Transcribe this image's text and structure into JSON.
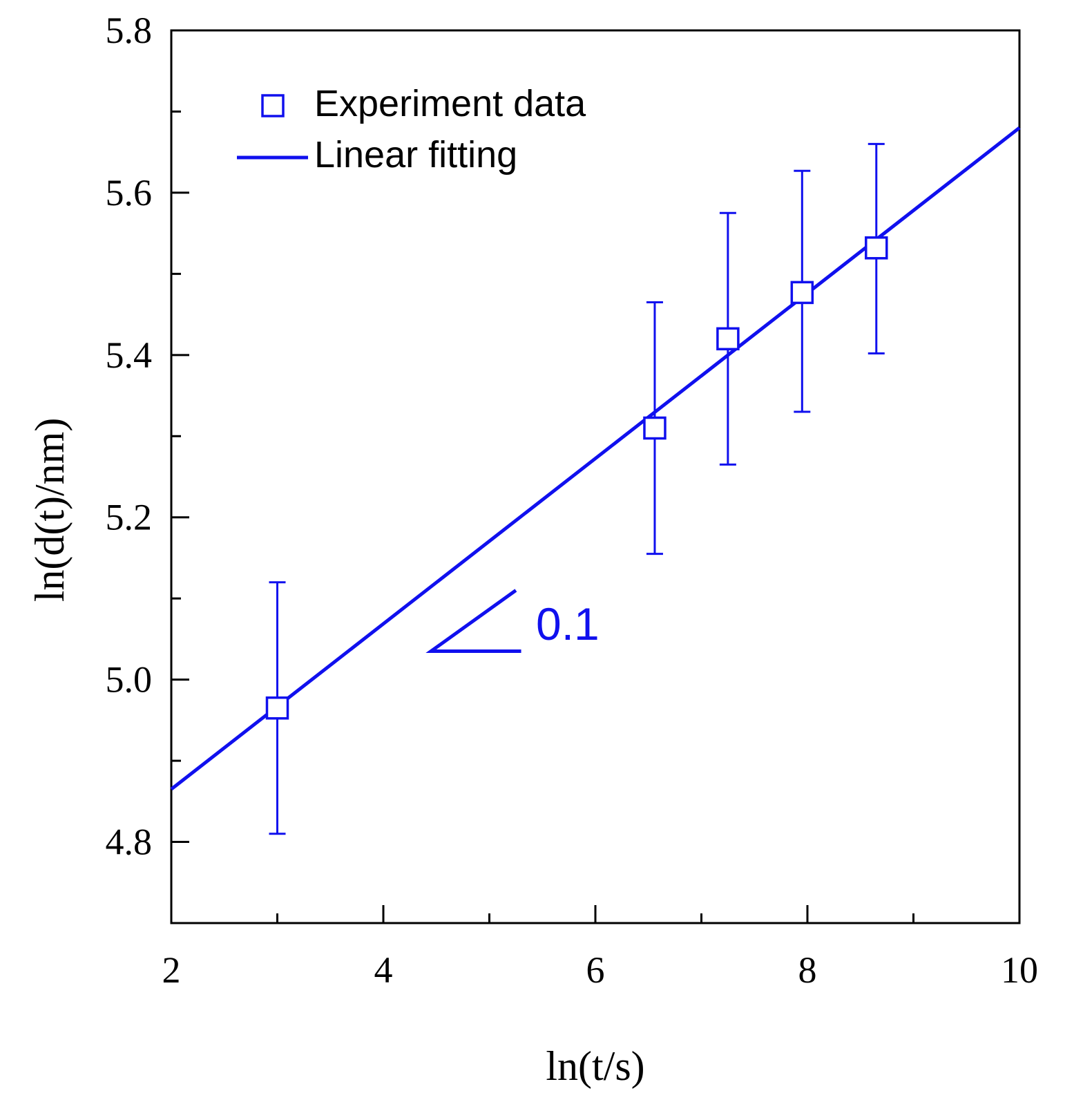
{
  "chart_data": {
    "type": "scatter",
    "xlabel": "ln(t/s)",
    "ylabel": "ln(d(t)/nm)",
    "xlim": [
      2,
      10
    ],
    "ylim": [
      4.7,
      5.8
    ],
    "x_ticks_major": [
      2,
      4,
      6,
      8,
      10
    ],
    "x_tick_labels": [
      "2",
      "4",
      "6",
      "8",
      "10"
    ],
    "x_ticks_minor": [
      3,
      5,
      7,
      9
    ],
    "y_ticks_major": [
      4.8,
      5.0,
      5.2,
      5.4,
      5.6,
      5.8
    ],
    "y_tick_labels": [
      "4.8",
      "5.0",
      "5.2",
      "5.4",
      "5.6",
      "5.8"
    ],
    "y_ticks_minor": [
      4.9,
      5.1,
      5.3,
      5.5,
      5.7
    ],
    "grid": false,
    "color": "#1010ee",
    "series": [
      {
        "name": "Experiment data",
        "marker": "open-square",
        "x": [
          3.0,
          6.56,
          7.25,
          7.95,
          8.65
        ],
        "y": [
          4.965,
          5.31,
          5.42,
          5.477,
          5.532
        ],
        "err_low": [
          4.81,
          5.155,
          5.265,
          5.33,
          5.402
        ],
        "err_high": [
          5.12,
          5.465,
          5.575,
          5.627,
          5.66
        ]
      },
      {
        "name": "Linear fitting",
        "line": "solid",
        "x": [
          2,
          10
        ],
        "y": [
          4.865,
          5.68
        ]
      }
    ],
    "legend": {
      "position": "top-left",
      "entries": [
        "Experiment data",
        "Linear fitting"
      ]
    },
    "annotation": {
      "text": "0.1",
      "type": "slope-triangle",
      "vertex": [
        4.45,
        5.035
      ],
      "run_end": [
        5.3,
        5.035
      ],
      "rise_end": [
        5.25,
        5.11
      ]
    }
  }
}
